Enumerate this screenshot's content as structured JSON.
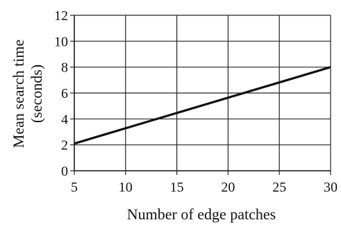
{
  "chart_data": {
    "type": "line",
    "title": "",
    "xlabel": "Number of edge patches",
    "ylabel_lines": [
      "Mean search time",
      "(seconds)"
    ],
    "x": [
      5,
      30
    ],
    "series": [
      {
        "values": [
          2.1,
          8.0
        ]
      }
    ],
    "xlim": [
      5,
      30
    ],
    "ylim": [
      0,
      12
    ],
    "xticks": [
      5,
      10,
      15,
      20,
      25,
      30
    ],
    "yticks": [
      0,
      2,
      4,
      6,
      8,
      10,
      12
    ],
    "grid": true,
    "legend": "none"
  },
  "colors": {
    "line": "#111111",
    "grid": "#222222",
    "background": "#ffffff"
  }
}
